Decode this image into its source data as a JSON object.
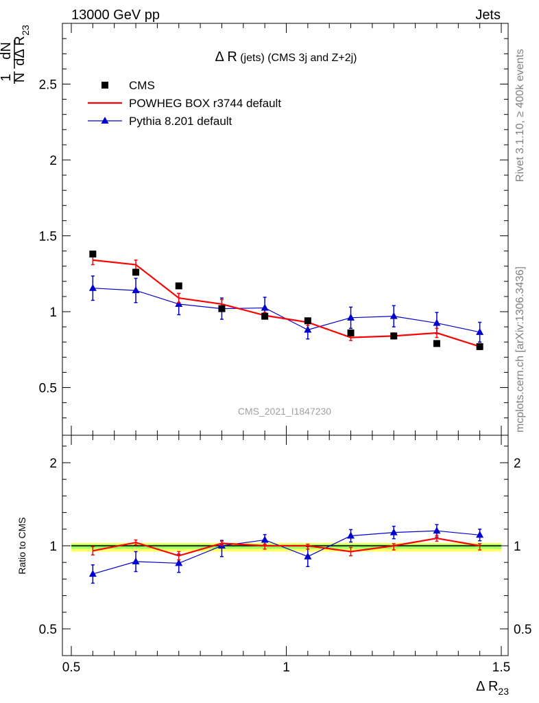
{
  "header": {
    "left": "13000 GeV pp",
    "right": "Jets"
  },
  "side_texts": {
    "rivet": "Rivet 3.1.10, ≥ 400k events",
    "mcplots": "mcplots.cern.ch [arXiv:1306.3436]"
  },
  "plot_title": {
    "main": "Δ R",
    "sub": " (jets) (CMS 3j and Z+2j)"
  },
  "watermark": "CMS_2021_I1847230",
  "y_label": {
    "numerator_1": "1",
    "denominator_1": "N",
    "numerator_2": "dN",
    "denominator_2": "dΔ R",
    "denominator_sub": "23"
  },
  "x_label": {
    "main": "Δ R",
    "sub": "23"
  },
  "ratio_y_label": "Ratio to CMS",
  "legend": [
    {
      "label": "CMS",
      "marker": "square",
      "color": "#000000"
    },
    {
      "label": "POWHEG BOX r3744 default",
      "marker": "line",
      "color": "#ff0000"
    },
    {
      "label": "Pythia 8.201 default",
      "marker": "triangle",
      "color": "#0000cc"
    }
  ],
  "chart_data": {
    "type": "scatter",
    "x_edges": [
      0.5,
      0.6,
      0.7,
      0.8,
      0.9,
      1.0,
      1.1,
      1.2,
      1.3,
      1.4,
      1.5
    ],
    "x": [
      0.55,
      0.65,
      0.75,
      0.85,
      0.95,
      1.05,
      1.15,
      1.25,
      1.35,
      1.45
    ],
    "xlim": [
      0.5,
      1.5
    ],
    "main_ylim": [
      0.2,
      2.9
    ],
    "main_yticks": [
      "0.5",
      "1",
      "1.5",
      "2",
      "2.5"
    ],
    "ratio_ylim": [
      0.4,
      2.3
    ],
    "ratio_yticks": [
      "0.5",
      "1",
      "2"
    ],
    "xticks": [
      "0.5",
      "1",
      "1.5"
    ],
    "series": [
      {
        "name": "CMS",
        "color": "#000000",
        "values": [
          1.38,
          1.26,
          1.17,
          1.02,
          0.97,
          0.94,
          0.86,
          0.84,
          0.79,
          0.77
        ],
        "errors": [
          0.015,
          0.015,
          0.015,
          0.015,
          0.015,
          0.015,
          0.015,
          0.015,
          0.015,
          0.015
        ]
      },
      {
        "name": "POWHEG BOX r3744 default",
        "color": "#ff0000",
        "values": [
          1.34,
          1.31,
          1.09,
          1.05,
          0.975,
          0.93,
          0.83,
          0.84,
          0.86,
          0.77
        ],
        "errors": [
          0.03,
          0.03,
          0.03,
          0.03,
          0.02,
          0.02,
          0.02,
          0.02,
          0.03,
          0.02
        ],
        "ratio": [
          0.97,
          1.04,
          0.94,
          1.03,
          1.0,
          1.0,
          0.965,
          1.0,
          1.09,
          1.0
        ],
        "ratio_errors": [
          0.025,
          0.03,
          0.025,
          0.025,
          0.02,
          0.02,
          0.025,
          0.025,
          0.035,
          0.025
        ]
      },
      {
        "name": "Pythia 8.201 default",
        "color": "#0000cc",
        "values": [
          1.155,
          1.14,
          1.05,
          1.02,
          1.025,
          0.88,
          0.96,
          0.97,
          0.925,
          0.865
        ],
        "errors": [
          0.08,
          0.08,
          0.07,
          0.07,
          0.07,
          0.06,
          0.07,
          0.07,
          0.07,
          0.065
        ],
        "ratio": [
          0.83,
          0.905,
          0.895,
          1.0,
          1.07,
          0.935,
          1.12,
          1.16,
          1.18,
          1.13
        ],
        "ratio_errors": [
          0.055,
          0.06,
          0.055,
          0.065,
          0.065,
          0.06,
          0.075,
          0.075,
          0.075,
          0.07
        ]
      }
    ]
  }
}
